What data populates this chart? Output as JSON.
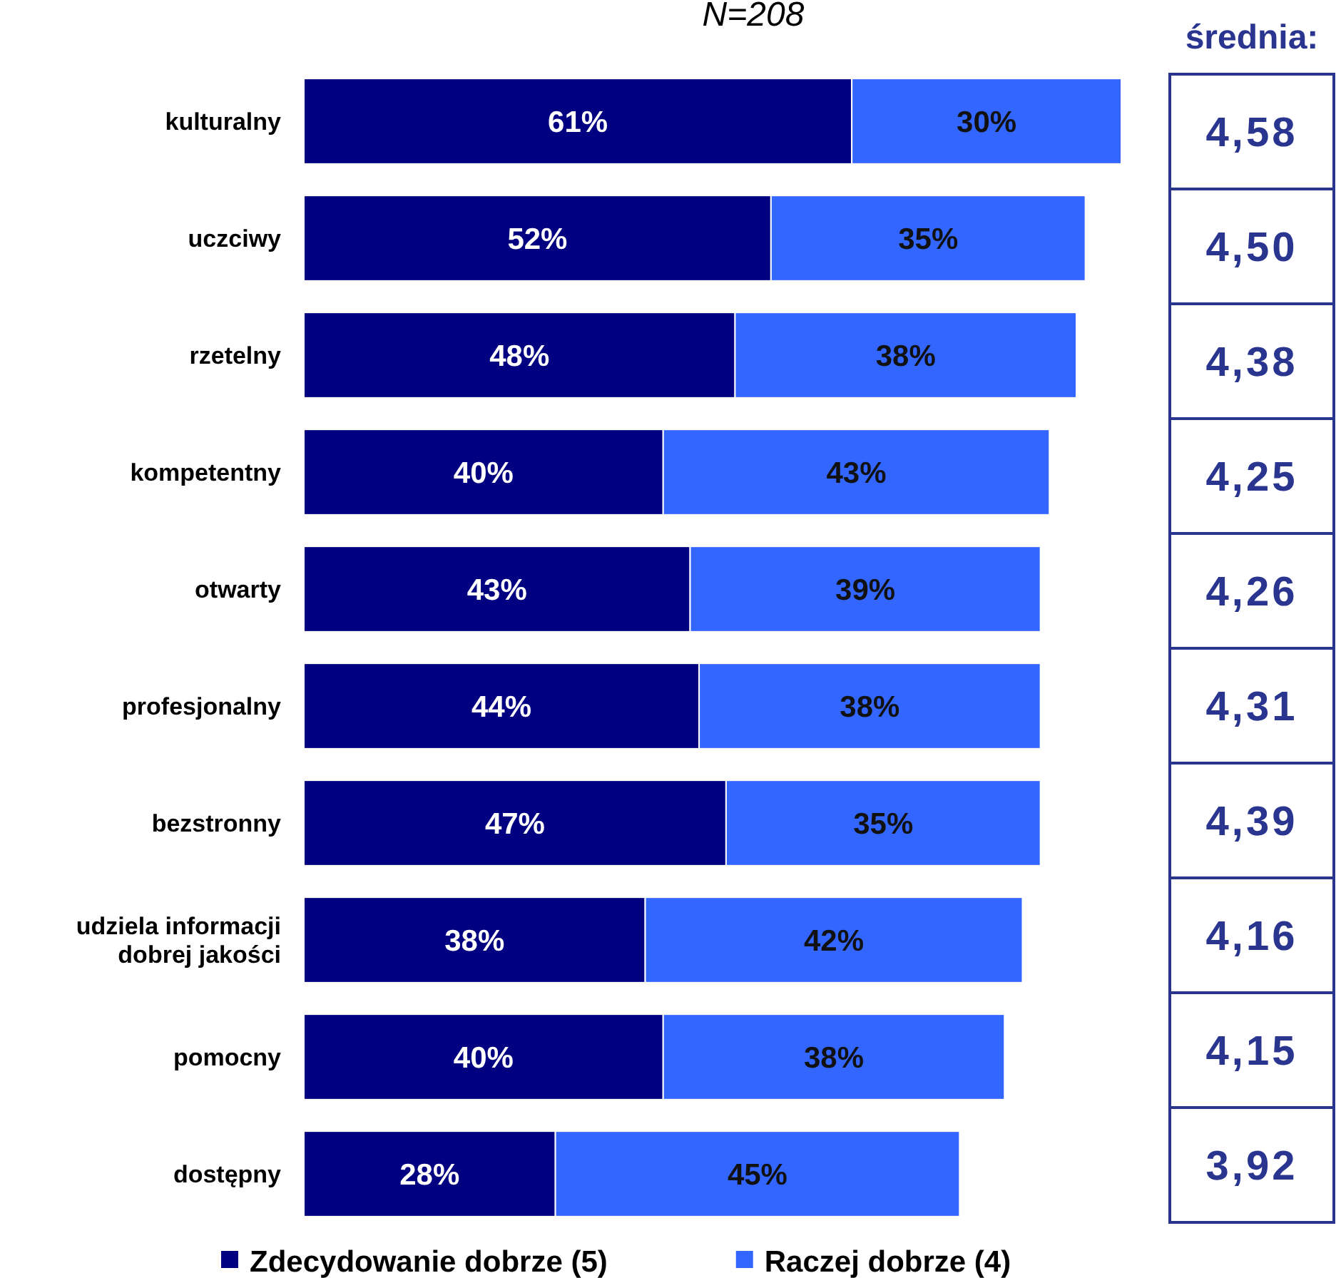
{
  "chart_data": [
    {
      "type": "bar",
      "orientation": "horizontal",
      "stacked": true,
      "subtitle": "N=208",
      "legend": "bottom",
      "categories": [
        "kulturalny",
        "uczciwy",
        "rzetelny",
        "kompetentny",
        "otwarty",
        "profesjonalny",
        "bezstronny",
        "udziela informacji dobrej jakości",
        "pomocny",
        "dostępny"
      ],
      "series": [
        {
          "name": "Zdecydowanie dobrze (5)",
          "color": "#000080",
          "values": [
            61,
            52,
            48,
            40,
            43,
            44,
            47,
            38,
            40,
            28
          ],
          "value_labels": [
            "61%",
            "52%",
            "48%",
            "40%",
            "43%",
            "44%",
            "47%",
            "38%",
            "40%",
            "28%"
          ]
        },
        {
          "name": "Raczej dobrze (4)",
          "color": "#3366ff",
          "values": [
            30,
            35,
            38,
            43,
            39,
            38,
            35,
            42,
            38,
            45
          ],
          "value_labels": [
            "30%",
            "35%",
            "38%",
            "43%",
            "39%",
            "38%",
            "35%",
            "42%",
            "38%",
            "45%"
          ]
        }
      ]
    },
    {
      "type": "other",
      "title": "średnia:",
      "annotations": [
        "4,58",
        "4,50",
        "4,38",
        "4,25",
        "4,26",
        "4,31",
        "4,39",
        "4,16",
        "4,15",
        "3,92"
      ]
    }
  ]
}
